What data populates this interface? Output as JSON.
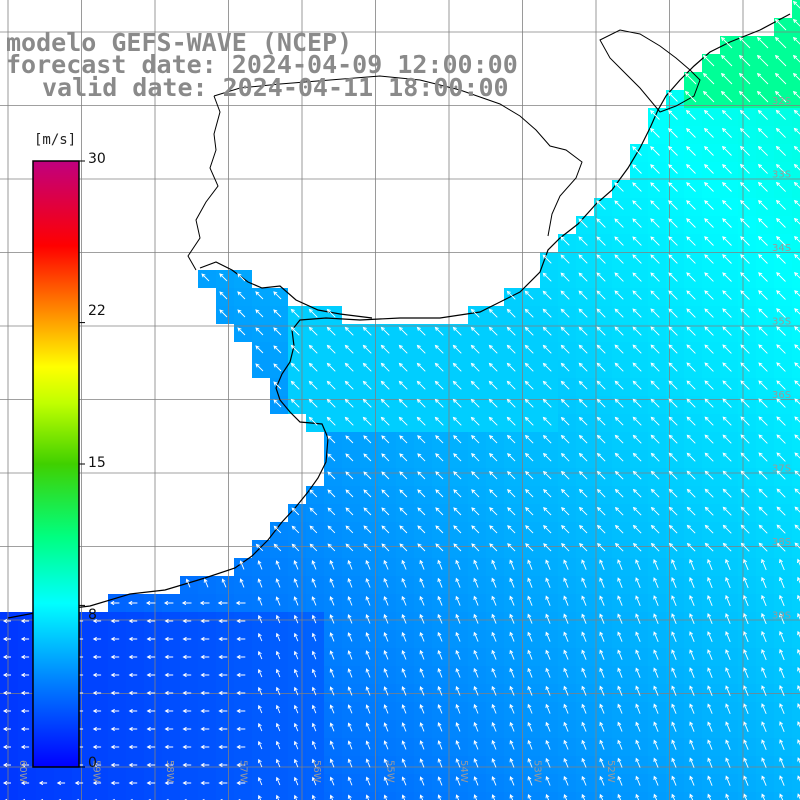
{
  "title": {
    "line1": "modelo GEFS-WAVE (NCEP)",
    "line2": "forecast date: 2024-04-09 12:00:00",
    "line3": "valid date: 2024-04-11 18:00:00"
  },
  "colorbar": {
    "units": "[m/s]",
    "min": 0,
    "max": 30,
    "ticks": [
      "30",
      "22",
      "15",
      "8",
      "0"
    ],
    "tick_values": [
      30,
      22,
      15,
      8,
      0
    ],
    "colors": [
      "#0000ff",
      "#0080ff",
      "#00e0ff",
      "#00ff80",
      "#40e000",
      "#c0ff00",
      "#ffff00",
      "#ffa000",
      "#ff4000",
      "#ff0000",
      "#e00060",
      "#c0007f"
    ]
  },
  "map": {
    "lon_labels": [
      "60W",
      "59W",
      "58W",
      "57W",
      "56W",
      "55W",
      "54W",
      "53W",
      "52W"
    ],
    "lat_labels": [
      "32S",
      "33S",
      "34S",
      "35S",
      "36S",
      "37S",
      "38S",
      "39S"
    ],
    "land_color": "#ffffff",
    "grid_color": "#808080",
    "coast_color": "#000000",
    "arrow_color": "#ffffff"
  }
}
